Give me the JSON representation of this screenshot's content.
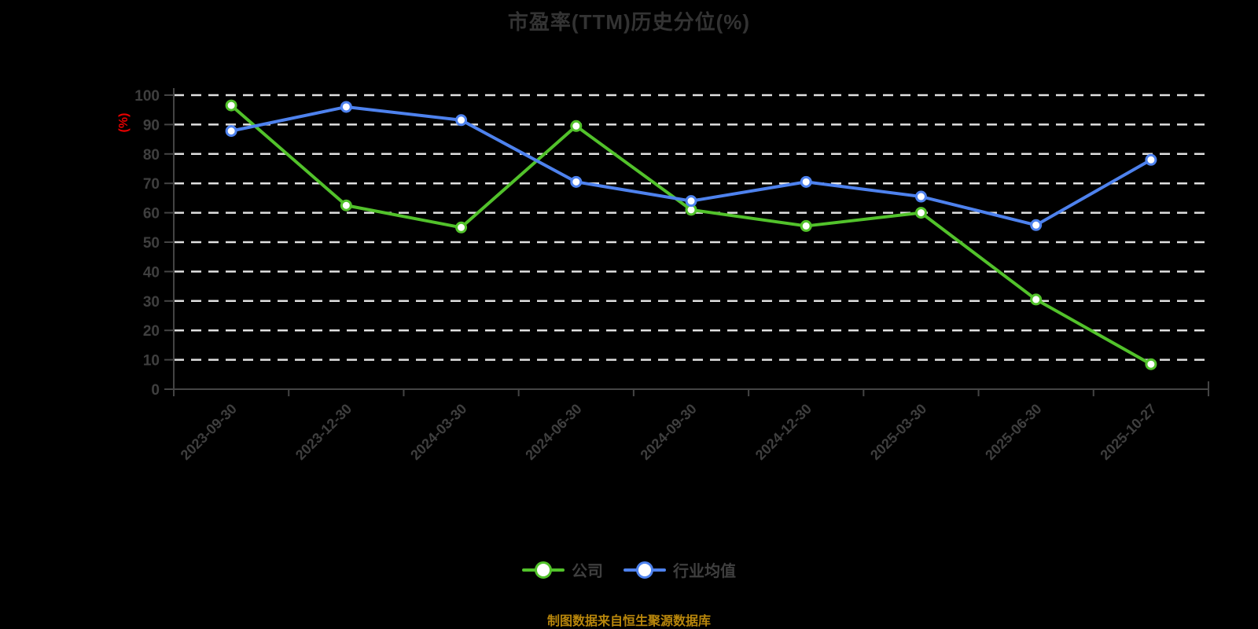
{
  "chart_data": {
    "type": "line",
    "title": "市盈率(TTM)历史分位(%)",
    "ylabel": "(%)",
    "xlabel": "",
    "source_note": "制图数据来自恒生聚源数据库",
    "categories": [
      "2023-09-30",
      "2023-12-30",
      "2024-03-30",
      "2024-06-30",
      "2024-09-30",
      "2024-12-30",
      "2025-03-30",
      "2025-06-30",
      "2025-10-27"
    ],
    "series": [
      {
        "name": "公司",
        "color": "#52c22b",
        "values": [
          96.5,
          62.5,
          55,
          89.5,
          61,
          55.5,
          60,
          30.5,
          8.5
        ]
      },
      {
        "name": "行业均值",
        "color": "#4e82ee",
        "values": [
          87.8,
          96,
          91.5,
          70.5,
          64,
          70.5,
          65.5,
          55.8,
          78
        ]
      }
    ],
    "ylim": [
      0,
      100
    ],
    "yticks": [
      0,
      10,
      20,
      30,
      40,
      50,
      60,
      70,
      80,
      90,
      100
    ],
    "grid": "horizontal-dashed",
    "legend_position": "bottom",
    "marker": "circle-white-fill",
    "colors": {
      "background": "#000000",
      "title": "#333333",
      "grid_line": "#e0e0e0",
      "axis_line": "#444444",
      "tick_label": "#3f3f3f",
      "y_unit_label": "#e80000",
      "legend_label": "#3f3f3f",
      "source_note": "#b8860b",
      "marker_fill": "#ffffff"
    }
  }
}
